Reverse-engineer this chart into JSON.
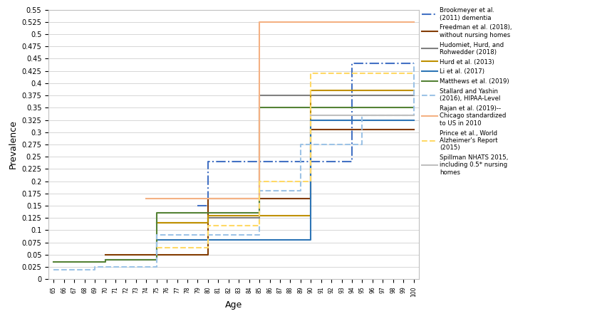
{
  "xlabel": "Age",
  "ylabel": "Prevalence",
  "ylim": [
    0,
    0.55
  ],
  "yticks": [
    0,
    0.025,
    0.05,
    0.075,
    0.1,
    0.125,
    0.15,
    0.175,
    0.2,
    0.225,
    0.25,
    0.275,
    0.3,
    0.325,
    0.35,
    0.375,
    0.4,
    0.425,
    0.45,
    0.475,
    0.5,
    0.525,
    0.55
  ],
  "ages": [
    65,
    66,
    67,
    68,
    69,
    70,
    71,
    72,
    73,
    74,
    75,
    76,
    77,
    78,
    79,
    80,
    81,
    82,
    83,
    84,
    85,
    86,
    87,
    88,
    89,
    90,
    91,
    92,
    93,
    94,
    95,
    96,
    97,
    98,
    99,
    100
  ],
  "series": [
    {
      "label": "Brookmeyer et al.\n(2011) dementia",
      "color": "#4472C4",
      "linestyle": "-.",
      "linewidth": 1.5,
      "values": [
        null,
        null,
        null,
        null,
        null,
        null,
        null,
        null,
        null,
        null,
        null,
        null,
        null,
        null,
        0.15,
        0.24,
        0.24,
        0.24,
        0.24,
        0.24,
        0.24,
        0.24,
        0.24,
        0.24,
        0.24,
        0.24,
        0.24,
        0.24,
        0.24,
        0.44,
        0.44,
        0.44,
        0.44,
        0.44,
        0.44,
        0.44
      ]
    },
    {
      "label": "Freedman et al. (2018),\nwithout nursing homes",
      "color": "#833C00",
      "linestyle": "-",
      "linewidth": 1.5,
      "values": [
        null,
        null,
        null,
        null,
        null,
        0.05,
        0.05,
        0.05,
        0.05,
        0.05,
        0.05,
        0.05,
        0.05,
        0.05,
        0.05,
        0.165,
        0.165,
        0.165,
        0.165,
        0.165,
        0.165,
        0.165,
        0.165,
        0.165,
        0.165,
        0.305,
        0.305,
        0.305,
        0.305,
        0.305,
        0.305,
        0.305,
        0.305,
        0.305,
        0.305,
        0.305
      ]
    },
    {
      "label": "Hudomiet, Hurd, and\nRohwedder (2018)",
      "color": "#808080",
      "linestyle": "-",
      "linewidth": 1.5,
      "values": [
        null,
        null,
        null,
        null,
        null,
        null,
        null,
        null,
        null,
        null,
        0.115,
        0.115,
        0.115,
        0.115,
        0.115,
        0.125,
        0.125,
        0.125,
        0.125,
        0.125,
        0.375,
        0.375,
        0.375,
        0.375,
        0.375,
        0.375,
        0.375,
        0.375,
        0.375,
        0.375,
        0.375,
        0.375,
        0.375,
        0.375,
        0.375,
        0.375
      ]
    },
    {
      "label": "Hurd et al. (2013)",
      "color": "#BF9000",
      "linestyle": "-",
      "linewidth": 1.5,
      "values": [
        null,
        null,
        null,
        null,
        null,
        null,
        null,
        null,
        null,
        null,
        0.115,
        0.115,
        0.115,
        0.115,
        0.115,
        0.13,
        0.13,
        0.13,
        0.13,
        0.13,
        0.13,
        0.13,
        0.13,
        0.13,
        0.13,
        0.385,
        0.385,
        0.385,
        0.385,
        0.385,
        0.385,
        0.385,
        0.385,
        0.385,
        0.385,
        0.385
      ]
    },
    {
      "label": "Li et al. (2017)",
      "color": "#2E75B6",
      "linestyle": "-",
      "linewidth": 1.5,
      "values": [
        null,
        null,
        null,
        null,
        null,
        0.04,
        0.04,
        0.04,
        0.04,
        0.04,
        0.08,
        0.08,
        0.08,
        0.08,
        0.08,
        0.08,
        0.08,
        0.08,
        0.08,
        0.08,
        0.08,
        0.08,
        0.08,
        0.08,
        0.08,
        0.325,
        0.325,
        0.325,
        0.325,
        0.325,
        0.325,
        0.325,
        0.325,
        0.325,
        0.325,
        0.325
      ]
    },
    {
      "label": "Matthews et al. (2019)",
      "color": "#548235",
      "linestyle": "-",
      "linewidth": 1.5,
      "values": [
        0.035,
        0.035,
        0.035,
        0.035,
        0.035,
        0.04,
        0.04,
        0.04,
        0.04,
        0.04,
        0.135,
        0.135,
        0.135,
        0.135,
        0.135,
        0.135,
        0.135,
        0.135,
        0.135,
        0.135,
        0.35,
        0.35,
        0.35,
        0.35,
        0.35,
        0.35,
        0.35,
        0.35,
        0.35,
        0.35,
        0.35,
        0.35,
        0.35,
        0.35,
        0.35,
        0.35
      ]
    },
    {
      "label": "Stallard and Yashin\n(2016), HIPAA-Level",
      "color": "#9DC3E6",
      "linestyle": "--",
      "linewidth": 1.5,
      "values": [
        0.02,
        0.02,
        0.02,
        0.02,
        0.025,
        0.025,
        0.025,
        0.025,
        0.025,
        0.025,
        0.09,
        0.09,
        0.09,
        0.09,
        0.09,
        0.09,
        0.09,
        0.09,
        0.09,
        0.09,
        0.18,
        0.18,
        0.18,
        0.18,
        0.275,
        0.275,
        0.275,
        0.275,
        0.275,
        0.275,
        0.335,
        0.335,
        0.335,
        0.335,
        0.335,
        0.44
      ]
    },
    {
      "label": "Rajan et al. (2019)--\nChicago standardized\nto US in 2010",
      "color": "#F4B183",
      "linestyle": "-",
      "linewidth": 1.5,
      "values": [
        null,
        null,
        null,
        null,
        null,
        null,
        null,
        null,
        null,
        0.165,
        0.165,
        0.165,
        0.165,
        0.165,
        0.165,
        0.165,
        0.165,
        0.165,
        0.165,
        0.165,
        0.525,
        0.525,
        0.525,
        0.525,
        0.525,
        0.525,
        0.525,
        0.525,
        0.525,
        0.525,
        0.525,
        0.525,
        0.525,
        0.525,
        0.525,
        0.525
      ]
    },
    {
      "label": "Prince et al., World\nAlzheimer's Report\n(2015)",
      "color": "#FFD966",
      "linestyle": "--",
      "linewidth": 1.5,
      "values": [
        null,
        null,
        null,
        null,
        null,
        null,
        null,
        null,
        null,
        null,
        0.065,
        0.065,
        0.065,
        0.065,
        0.065,
        0.11,
        0.11,
        0.11,
        0.11,
        0.11,
        0.2,
        0.2,
        0.2,
        0.2,
        0.2,
        0.42,
        0.42,
        0.42,
        0.42,
        0.42,
        0.42,
        0.42,
        0.42,
        0.42,
        0.42,
        0.42
      ]
    },
    {
      "label": "Spillman NHATS 2015,\nincluding 0.5* nursing\nhomes",
      "color": "#BFBFBF",
      "linestyle": "-",
      "linewidth": 1.5,
      "values": [
        null,
        null,
        null,
        null,
        null,
        null,
        null,
        null,
        null,
        null,
        null,
        null,
        null,
        null,
        null,
        null,
        null,
        null,
        null,
        null,
        null,
        null,
        null,
        null,
        null,
        0.335,
        0.335,
        0.335,
        0.335,
        0.335,
        0.335,
        0.335,
        0.335,
        0.335,
        0.335,
        0.335
      ]
    }
  ]
}
